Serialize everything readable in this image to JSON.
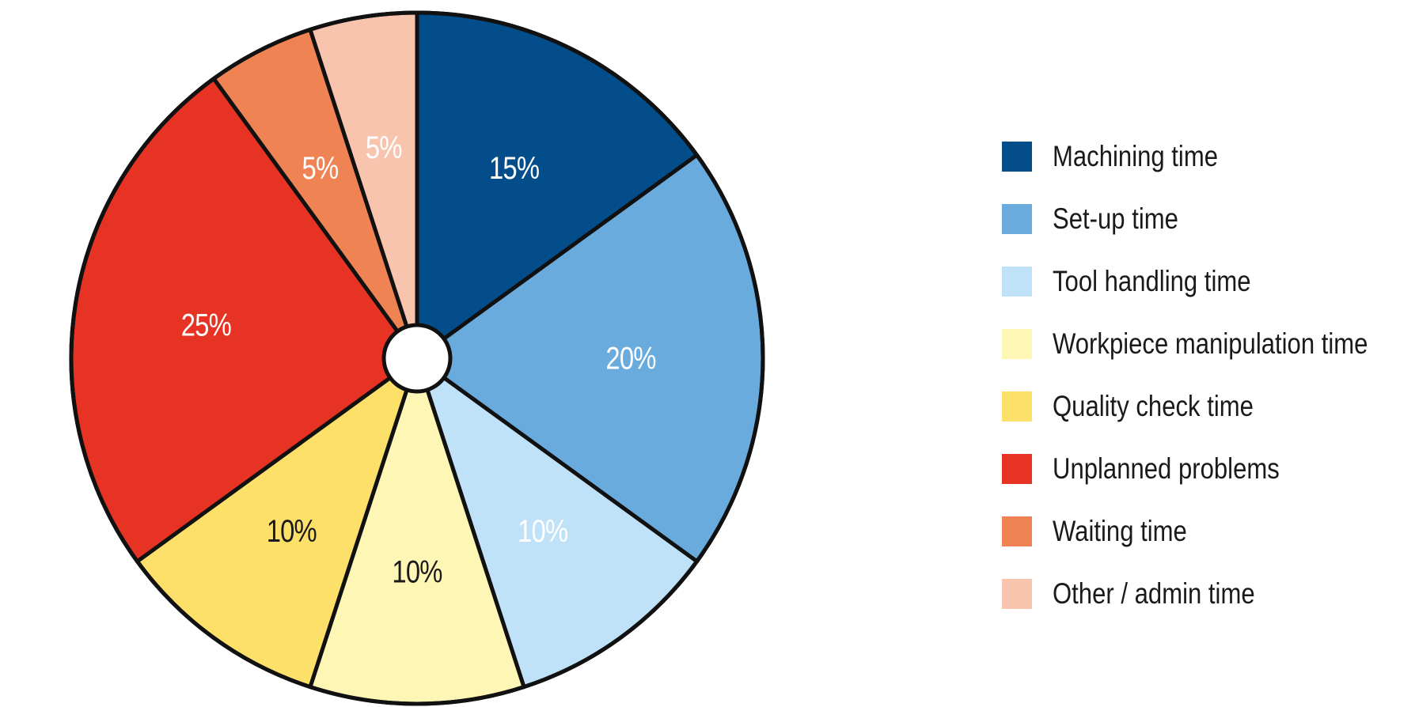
{
  "chart_data": {
    "type": "pie",
    "title": "",
    "donut_hole": true,
    "start_angle": "12 o'clock, clockwise",
    "legend_position": "right",
    "slices": [
      {
        "name": "Machining time",
        "value": 15,
        "label": "15%",
        "color": "#034e8a",
        "label_color": "#ffffff"
      },
      {
        "name": "Set-up time",
        "value": 20,
        "label": "20%",
        "color": "#6aabdd",
        "label_color": "#ffffff"
      },
      {
        "name": "Tool handling time",
        "value": 10,
        "label": "10%",
        "color": "#bfe2f8",
        "label_color": "#ffffff"
      },
      {
        "name": "Workpiece manipulation time",
        "value": 10,
        "label": "10%",
        "color": "#fef6b5",
        "label_color": "#1a1a1a"
      },
      {
        "name": "Quality check time",
        "value": 10,
        "label": "10%",
        "color": "#fde06a",
        "label_color": "#1a1a1a"
      },
      {
        "name": "Unplanned problems",
        "value": 25,
        "label": "25%",
        "color": "#e63323",
        "label_color": "#ffffff"
      },
      {
        "name": "Waiting time",
        "value": 5,
        "label": "5%",
        "color": "#ef8354",
        "label_color": "#ffffff"
      },
      {
        "name": "Other / admin time",
        "value": 5,
        "label": "5%",
        "color": "#f8c4ae",
        "label_color": "#ffffff"
      }
    ]
  }
}
